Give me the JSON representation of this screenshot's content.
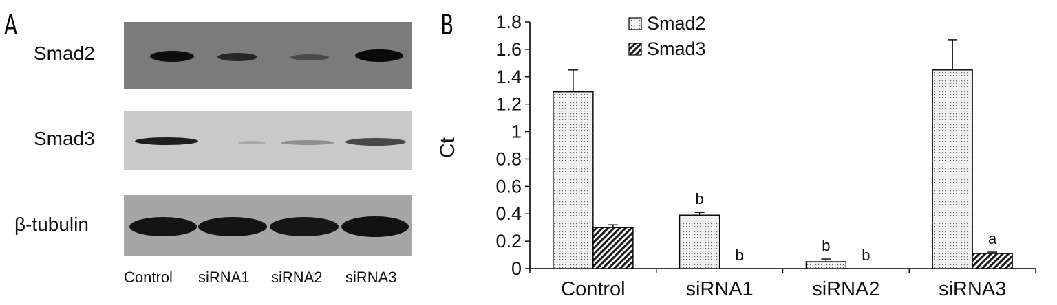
{
  "panel_a": {
    "letter": "A",
    "row_labels": {
      "smad2": "Smad2",
      "smad3": "Smad3",
      "tubulin": "β-tubulin"
    },
    "lane_labels": [
      "Control",
      "siRNA1",
      "siRNA2",
      "siRNA3"
    ]
  },
  "panel_b": {
    "letter": "B"
  },
  "chart_data": {
    "type": "bar",
    "categories": [
      "Control",
      "siRNA1",
      "siRNA2",
      "siRNA3"
    ],
    "series": [
      {
        "name": "Smad2",
        "values": [
          1.29,
          0.39,
          0.05,
          1.45
        ],
        "errors": [
          0.16,
          0.02,
          0.02,
          0.22
        ],
        "pattern": "dots"
      },
      {
        "name": "Smad3",
        "values": [
          0.3,
          0.0,
          0.0,
          0.11
        ],
        "errors": [
          0.02,
          0.0,
          0.0,
          0.01
        ],
        "pattern": "hatch"
      }
    ],
    "annotations": {
      "Smad2": [
        "",
        "b",
        "b",
        ""
      ],
      "Smad3": [
        "",
        "b",
        "b",
        "a"
      ]
    },
    "ylabel": "Ct",
    "xlabel": "",
    "ylim": [
      0,
      1.8
    ],
    "yticks": [
      "0",
      "0.2",
      "0.4",
      "0.6",
      "0.8",
      "1",
      "1.2",
      "1.4",
      "1.6",
      "1.8"
    ],
    "legend_position": "top-left",
    "grid": false
  }
}
